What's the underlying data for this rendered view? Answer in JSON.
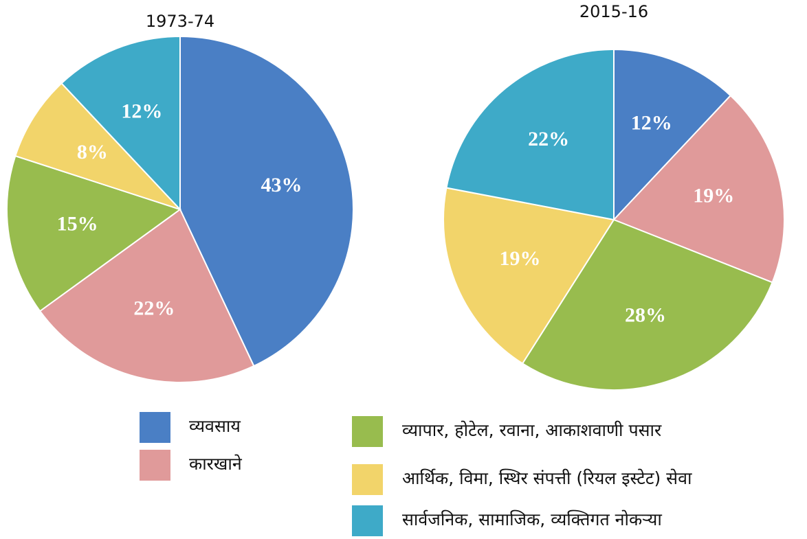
{
  "chart_data": [
    {
      "type": "pie",
      "title": "1973-74",
      "values": [
        43,
        22,
        15,
        8,
        12
      ],
      "value_labels": [
        "43%",
        "22%",
        "15%",
        "8%",
        "12%"
      ]
    },
    {
      "type": "pie",
      "title": "2015-16",
      "values": [
        12,
        19,
        28,
        19,
        22
      ],
      "value_labels": [
        "12%",
        "19%",
        "28%",
        "19%",
        "22%"
      ]
    }
  ],
  "legend": [
    {
      "name": "व्यवसाय",
      "color": "#4a7fc5"
    },
    {
      "name": "कारखाने",
      "color": "#e09a9a"
    },
    {
      "name": "व्यापार, होटेल, रवाना, आकाशवाणी पसार",
      "color": "#98bc4e"
    },
    {
      "name": "आर्थिक, विमा, स्थिर संपत्ती (रियल इस्टेट) सेवा",
      "color": "#f2d46a"
    },
    {
      "name": "सार्वजनिक, सामाजिक, व्यक्तिगत नोकऱ्या",
      "color": "#3eaac8"
    }
  ]
}
